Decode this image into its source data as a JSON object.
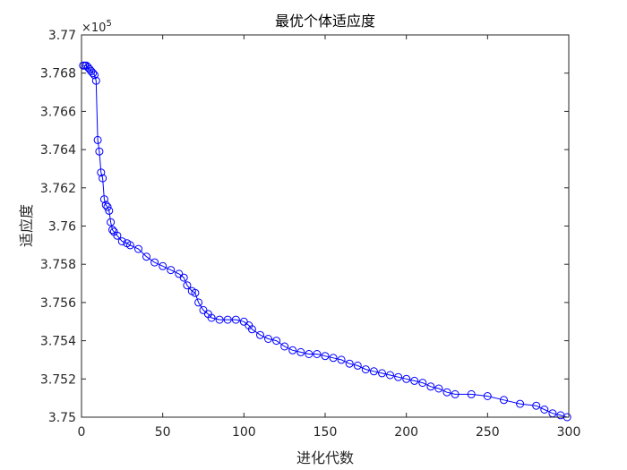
{
  "chart_data": {
    "type": "line",
    "title": "最优个体适应度",
    "xlabel": "进化代数",
    "ylabel": "适应度",
    "y_multiplier_label": "×10",
    "y_multiplier_exp": "5",
    "xlim": [
      0,
      300
    ],
    "ylim": [
      3.75,
      3.77
    ],
    "x_ticks": [
      0,
      50,
      100,
      150,
      200,
      250,
      300
    ],
    "x_tick_labels": [
      "0",
      "50",
      "100",
      "150",
      "200",
      "250",
      "300"
    ],
    "y_ticks": [
      3.75,
      3.752,
      3.754,
      3.756,
      3.758,
      3.76,
      3.762,
      3.764,
      3.766,
      3.768,
      3.77
    ],
    "y_tick_labels": [
      "3.75",
      "3.752",
      "3.754",
      "3.756",
      "3.758",
      "3.76",
      "3.762",
      "3.764",
      "3.766",
      "3.768",
      "3.77"
    ],
    "grid": false,
    "marker": "circle",
    "series": [
      {
        "color": "#0000ff",
        "x": [
          1,
          2,
          3,
          4,
          5,
          6,
          7,
          8,
          9,
          10,
          11,
          12,
          13,
          14,
          15,
          16,
          17,
          18,
          19,
          20,
          22,
          25,
          28,
          30,
          35,
          40,
          45,
          50,
          55,
          60,
          63,
          65,
          68,
          70,
          72,
          75,
          78,
          80,
          85,
          90,
          95,
          100,
          103,
          105,
          110,
          115,
          120,
          125,
          130,
          135,
          140,
          145,
          150,
          155,
          160,
          165,
          170,
          175,
          180,
          185,
          190,
          195,
          200,
          205,
          210,
          215,
          220,
          225,
          230,
          240,
          250,
          260,
          270,
          280,
          285,
          290,
          295,
          299
        ],
        "y": [
          3.7684,
          3.7684,
          3.7684,
          3.7683,
          3.7682,
          3.7681,
          3.768,
          3.7679,
          3.7676,
          3.7645,
          3.7639,
          3.7628,
          3.7625,
          3.7614,
          3.7611,
          3.761,
          3.7608,
          3.7602,
          3.7598,
          3.7597,
          3.7595,
          3.7592,
          3.7591,
          3.759,
          3.7588,
          3.7584,
          3.7581,
          3.7579,
          3.7577,
          3.7575,
          3.7573,
          3.7569,
          3.7566,
          3.7565,
          3.756,
          3.7556,
          3.7554,
          3.7552,
          3.7551,
          3.7551,
          3.7551,
          3.755,
          3.7548,
          3.7546,
          3.7543,
          3.7541,
          3.754,
          3.7537,
          3.7535,
          3.7534,
          3.7533,
          3.7533,
          3.7532,
          3.7531,
          3.753,
          3.7528,
          3.7527,
          3.7525,
          3.7524,
          3.7523,
          3.7522,
          3.7521,
          3.752,
          3.7519,
          3.7518,
          3.7516,
          3.7515,
          3.7513,
          3.7512,
          3.7512,
          3.7511,
          3.7509,
          3.7507,
          3.7506,
          3.7504,
          3.7502,
          3.7501,
          3.75
        ]
      }
    ]
  }
}
